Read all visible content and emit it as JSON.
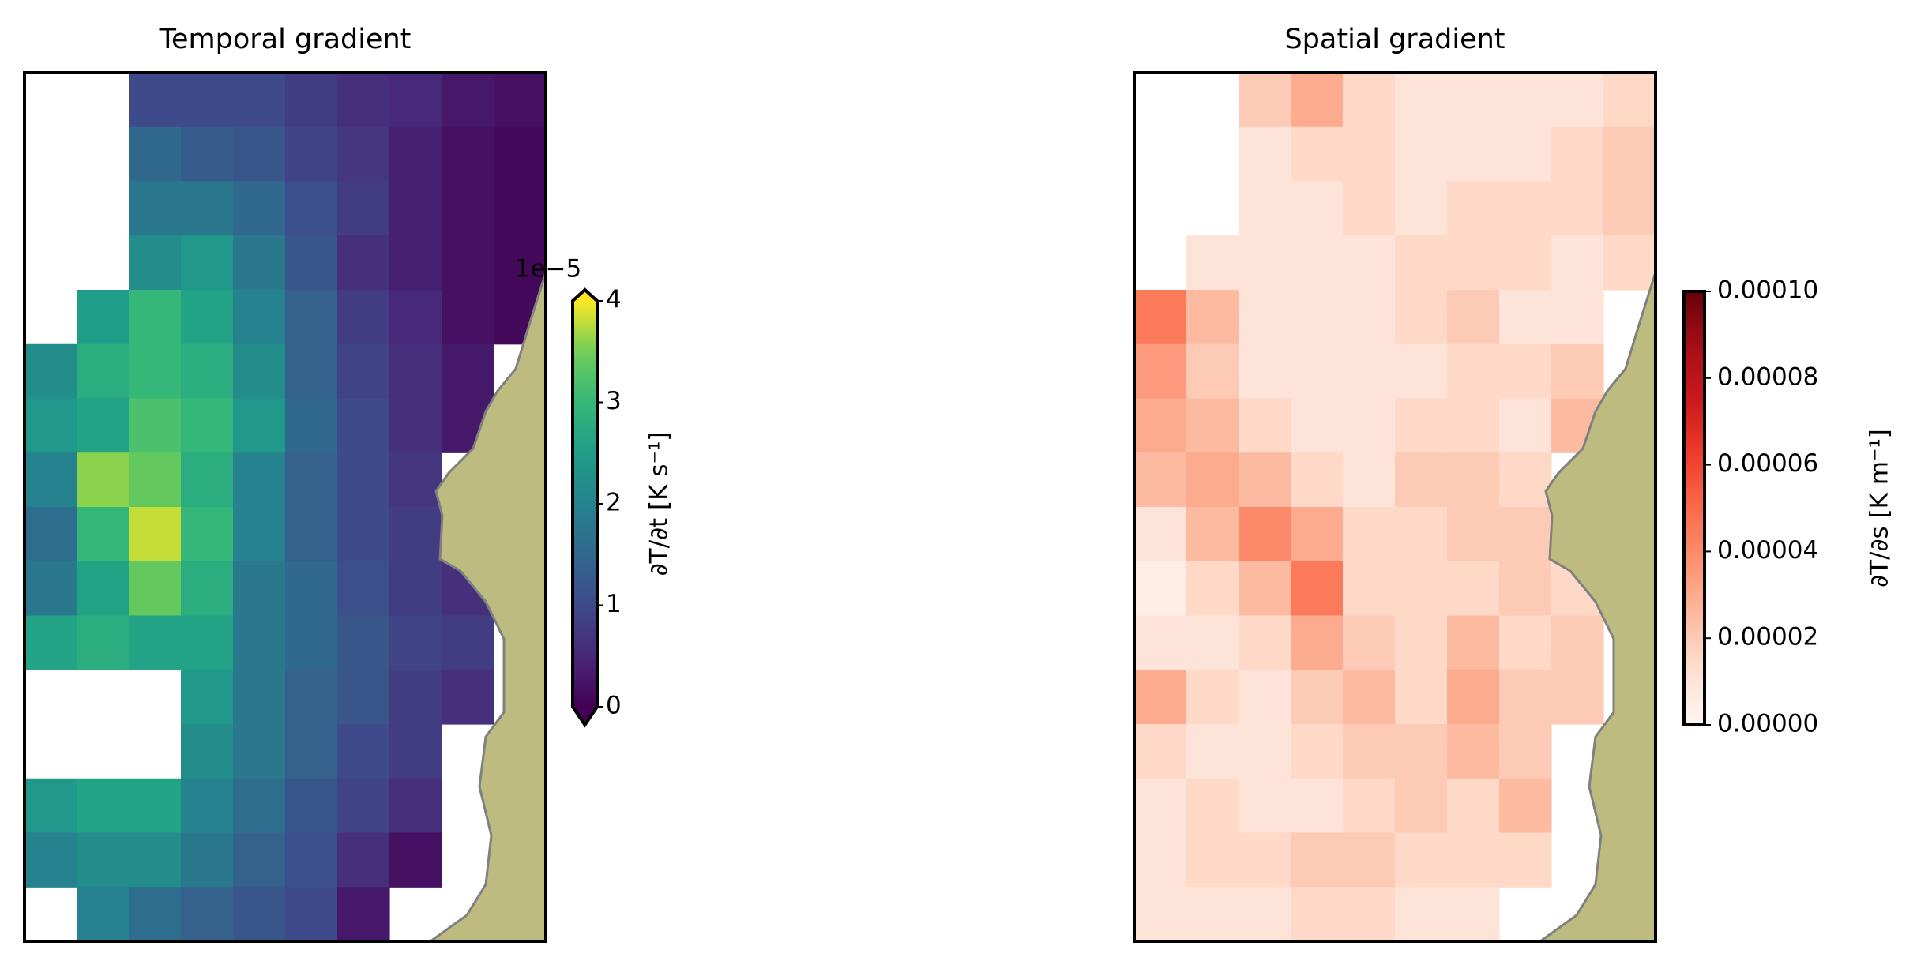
{
  "chart_data": [
    {
      "type": "heatmap",
      "title": "Temporal gradient",
      "cmap": "viridis",
      "clim": [
        0,
        4
      ],
      "colorbar_ticks": [
        0,
        1,
        2,
        3,
        4
      ],
      "colorbar_offset": "1e−5",
      "colorbar_extend": "both",
      "colorbar_label": "∂T/∂t [K s⁻¹]",
      "values": [
        [
          null,
          null,
          1.0,
          1.0,
          1.0,
          0.8,
          0.6,
          0.5,
          0.3,
          0.2
        ],
        [
          null,
          null,
          1.5,
          1.3,
          1.2,
          0.9,
          0.7,
          0.4,
          0.2,
          0.1
        ],
        [
          null,
          null,
          1.8,
          1.8,
          1.5,
          1.1,
          0.8,
          0.4,
          0.2,
          0.1
        ],
        [
          null,
          null,
          2.2,
          2.4,
          1.8,
          1.2,
          0.6,
          0.4,
          0.2,
          0.1
        ],
        [
          null,
          2.5,
          3.0,
          2.6,
          2.0,
          1.4,
          0.8,
          0.5,
          0.2,
          0.1
        ],
        [
          2.2,
          2.8,
          3.0,
          2.8,
          2.2,
          1.4,
          0.9,
          0.6,
          0.3,
          null
        ],
        [
          2.4,
          2.6,
          3.2,
          3.0,
          2.4,
          1.5,
          1.0,
          0.6,
          0.3,
          null
        ],
        [
          2.0,
          3.6,
          3.4,
          2.8,
          2.0,
          1.4,
          1.0,
          0.7,
          null,
          null
        ],
        [
          1.6,
          3.0,
          3.8,
          3.0,
          2.0,
          1.4,
          1.0,
          0.8,
          null,
          null
        ],
        [
          1.8,
          2.6,
          3.4,
          2.8,
          1.8,
          1.5,
          1.1,
          0.8,
          0.6,
          null
        ],
        [
          2.6,
          2.8,
          2.6,
          2.6,
          1.8,
          1.5,
          1.2,
          0.9,
          0.8,
          null
        ],
        [
          null,
          null,
          null,
          2.4,
          1.8,
          1.4,
          1.2,
          0.8,
          0.6,
          null
        ],
        [
          null,
          null,
          null,
          2.2,
          1.8,
          1.4,
          1.0,
          0.8,
          null,
          null
        ],
        [
          2.4,
          2.6,
          2.6,
          2.0,
          1.6,
          1.2,
          0.9,
          0.6,
          null,
          null
        ],
        [
          2.0,
          2.2,
          2.2,
          1.8,
          1.4,
          1.1,
          0.6,
          0.2,
          null,
          null
        ],
        [
          null,
          2.0,
          1.6,
          1.4,
          1.2,
          1.0,
          0.3,
          null,
          null,
          null
        ]
      ]
    },
    {
      "type": "heatmap",
      "title": "Spatial gradient",
      "cmap": "Reds",
      "clim": [
        0,
        0.0001
      ],
      "colorbar_ticks": [
        {
          "value": 0,
          "label": "0.00000"
        },
        {
          "value": 2e-05,
          "label": "0.00002"
        },
        {
          "value": 4e-05,
          "label": "0.00004"
        },
        {
          "value": 6e-05,
          "label": "0.00006"
        },
        {
          "value": 8e-05,
          "label": "0.00008"
        },
        {
          "value": 0.0001,
          "label": "0.00010"
        }
      ],
      "colorbar_label": "∂T/∂s [K m⁻¹]",
      "values": [
        [
          null,
          null,
          2e-05,
          3e-05,
          1.5e-05,
          1e-05,
          1e-05,
          1e-05,
          1e-05,
          1.5e-05
        ],
        [
          null,
          null,
          1e-05,
          1.5e-05,
          1.5e-05,
          1e-05,
          1e-05,
          1e-05,
          1.5e-05,
          2e-05
        ],
        [
          null,
          null,
          1e-05,
          1e-05,
          1.5e-05,
          1e-05,
          1.5e-05,
          1.5e-05,
          1.5e-05,
          2e-05
        ],
        [
          null,
          1e-05,
          1e-05,
          1e-05,
          1e-05,
          1.5e-05,
          1.5e-05,
          1.5e-05,
          1e-05,
          1.5e-05
        ],
        [
          4.5e-05,
          2.5e-05,
          1e-05,
          1e-05,
          1e-05,
          1.5e-05,
          2e-05,
          1e-05,
          1e-05,
          null
        ],
        [
          3.5e-05,
          2e-05,
          1e-05,
          1e-05,
          1e-05,
          1e-05,
          1.5e-05,
          1.5e-05,
          2e-05,
          null
        ],
        [
          3e-05,
          2.5e-05,
          1.5e-05,
          1e-05,
          1e-05,
          1.5e-05,
          1.5e-05,
          1e-05,
          2.5e-05,
          null
        ],
        [
          2.5e-05,
          3e-05,
          2.5e-05,
          1.5e-05,
          1e-05,
          2e-05,
          2e-05,
          1.5e-05,
          null,
          null
        ],
        [
          1e-05,
          2.5e-05,
          4e-05,
          3e-05,
          1.5e-05,
          1.5e-05,
          2e-05,
          2e-05,
          null,
          null
        ],
        [
          5e-06,
          1.5e-05,
          2.5e-05,
          4.5e-05,
          1.5e-05,
          1.5e-05,
          1.5e-05,
          2e-05,
          1.5e-05,
          null
        ],
        [
          1e-05,
          1e-05,
          1.5e-05,
          3e-05,
          2e-05,
          1.5e-05,
          2.5e-05,
          1.5e-05,
          2e-05,
          null
        ],
        [
          3e-05,
          1.5e-05,
          1e-05,
          2e-05,
          2.5e-05,
          1.5e-05,
          3e-05,
          2e-05,
          2e-05,
          null
        ],
        [
          1.5e-05,
          1e-05,
          1e-05,
          1.5e-05,
          2e-05,
          2e-05,
          2.5e-05,
          2e-05,
          null,
          null
        ],
        [
          1e-05,
          1.5e-05,
          1e-05,
          1e-05,
          1.5e-05,
          2e-05,
          1.5e-05,
          2.5e-05,
          null,
          null
        ],
        [
          1e-05,
          1.5e-05,
          1.5e-05,
          2e-05,
          2e-05,
          1.5e-05,
          1.5e-05,
          1.5e-05,
          null,
          null
        ],
        [
          1e-05,
          1e-05,
          1e-05,
          1.5e-05,
          1.5e-05,
          1e-05,
          1e-05,
          null,
          null,
          null
        ]
      ]
    }
  ]
}
